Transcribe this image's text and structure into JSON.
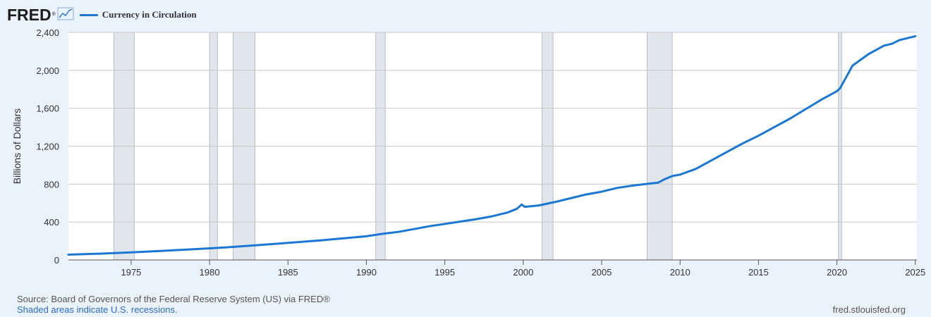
{
  "header": {
    "logo_text": "FRED",
    "logo_mark": "®",
    "logo_icon": "line-graph-icon"
  },
  "chart_data": {
    "type": "line",
    "title": "",
    "xlabel": "",
    "ylabel": "Billions of Dollars",
    "xlim": [
      1971.0,
      2025.1
    ],
    "ylim": [
      0,
      2400
    ],
    "yticks": [
      0,
      400,
      800,
      1200,
      1600,
      2000,
      2400
    ],
    "ytick_labels": [
      "0",
      "400",
      "800",
      "1,200",
      "1,600",
      "2,000",
      "2,400"
    ],
    "xticks": [
      1975,
      1980,
      1985,
      1990,
      1995,
      2000,
      2005,
      2010,
      2015,
      2020,
      2025
    ],
    "xtick_labels": [
      "1975",
      "1980",
      "1985",
      "1990",
      "1995",
      "2000",
      "2005",
      "2010",
      "2015",
      "2020",
      "2025"
    ],
    "grid": true,
    "legend_position": "top-left",
    "recessions": [
      [
        1973.9,
        1975.2
      ],
      [
        1980.0,
        1980.5
      ],
      [
        1981.5,
        1982.9
      ],
      [
        1990.6,
        1991.2
      ],
      [
        2001.2,
        2001.9
      ],
      [
        2007.9,
        2009.5
      ],
      [
        2020.1,
        2020.3
      ]
    ],
    "series": [
      {
        "name": "Currency in Circulation",
        "color": "#1a78d4",
        "points": [
          [
            1971.0,
            56
          ],
          [
            1973.0,
            66
          ],
          [
            1975.0,
            80
          ],
          [
            1977.0,
            96
          ],
          [
            1979.0,
            114
          ],
          [
            1981.0,
            132
          ],
          [
            1983.0,
            155
          ],
          [
            1985.0,
            180
          ],
          [
            1987.0,
            205
          ],
          [
            1989.0,
            235
          ],
          [
            1990.0,
            250
          ],
          [
            1991.0,
            275
          ],
          [
            1992.0,
            295
          ],
          [
            1993.0,
            325
          ],
          [
            1994.0,
            355
          ],
          [
            1995.0,
            380
          ],
          [
            1996.0,
            405
          ],
          [
            1997.0,
            430
          ],
          [
            1998.0,
            460
          ],
          [
            1999.0,
            500
          ],
          [
            1999.6,
            540
          ],
          [
            1999.9,
            585
          ],
          [
            2000.1,
            560
          ],
          [
            2001.0,
            575
          ],
          [
            2002.0,
            610
          ],
          [
            2003.0,
            650
          ],
          [
            2004.0,
            690
          ],
          [
            2005.0,
            720
          ],
          [
            2006.0,
            760
          ],
          [
            2007.0,
            785
          ],
          [
            2008.0,
            805
          ],
          [
            2008.6,
            815
          ],
          [
            2009.0,
            850
          ],
          [
            2009.5,
            885
          ],
          [
            2010.0,
            900
          ],
          [
            2011.0,
            960
          ],
          [
            2012.0,
            1050
          ],
          [
            2013.0,
            1140
          ],
          [
            2014.0,
            1230
          ],
          [
            2015.0,
            1310
          ],
          [
            2016.0,
            1400
          ],
          [
            2017.0,
            1490
          ],
          [
            2018.0,
            1590
          ],
          [
            2019.0,
            1690
          ],
          [
            2020.0,
            1780
          ],
          [
            2020.2,
            1810
          ],
          [
            2020.5,
            1900
          ],
          [
            2021.0,
            2050
          ],
          [
            2022.0,
            2170
          ],
          [
            2023.0,
            2260
          ],
          [
            2023.5,
            2280
          ],
          [
            2024.0,
            2320
          ],
          [
            2025.0,
            2360
          ]
        ]
      }
    ]
  },
  "footer": {
    "source": "Source: Board of Governors of the Federal Reserve System (US) via FRED®",
    "note": "Shaded areas indicate U.S. recessions.",
    "url": "fred.stlouisfed.org"
  }
}
